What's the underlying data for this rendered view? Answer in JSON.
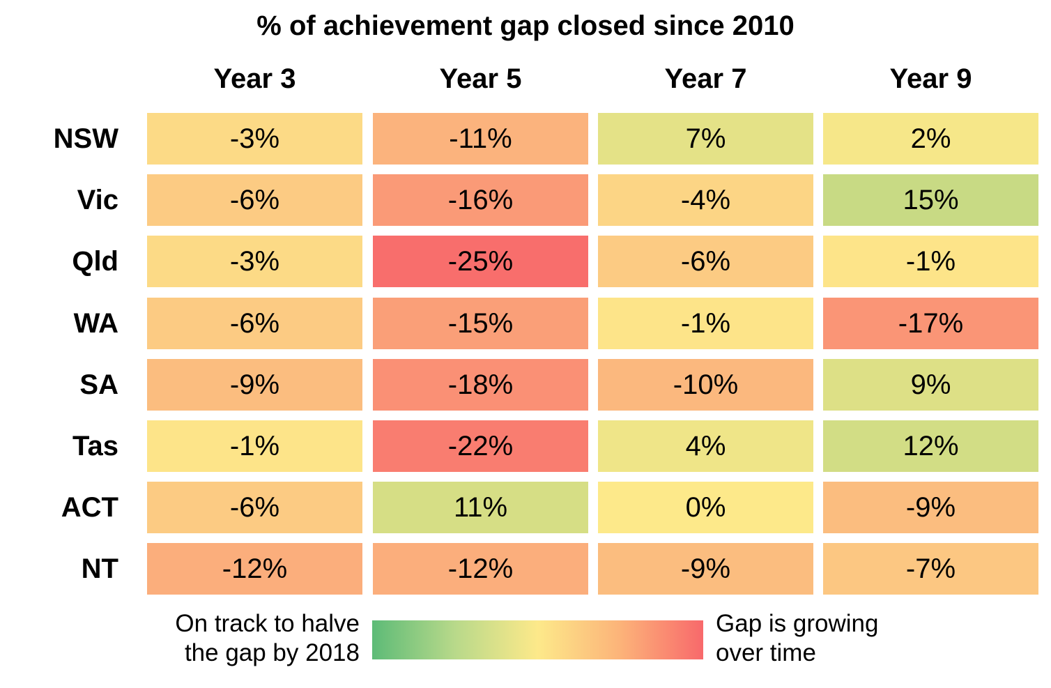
{
  "chart_data": {
    "type": "heatmap",
    "title": "% of achievement gap closed since 2010",
    "columns": [
      "Year 3",
      "Year 5",
      "Year 7",
      "Year 9"
    ],
    "rows": [
      "NSW",
      "Vic",
      "Qld",
      "WA",
      "SA",
      "Tas",
      "ACT",
      "NT"
    ],
    "values": [
      [
        -3,
        -11,
        7,
        2
      ],
      [
        -6,
        -16,
        -4,
        15
      ],
      [
        -3,
        -25,
        -6,
        -1
      ],
      [
        -6,
        -15,
        -1,
        -17
      ],
      [
        -9,
        -18,
        -10,
        9
      ],
      [
        -1,
        -22,
        4,
        12
      ],
      [
        -6,
        11,
        0,
        -9
      ],
      [
        -12,
        -12,
        -9,
        -7
      ]
    ],
    "labels": [
      [
        "-3%",
        "-11%",
        "7%",
        "2%"
      ],
      [
        "-6%",
        "-16%",
        "-4%",
        "15%"
      ],
      [
        "-3%",
        "-25%",
        "-6%",
        "-1%"
      ],
      [
        "-6%",
        "-15%",
        "-1%",
        "-17%"
      ],
      [
        "-9%",
        "-18%",
        "-10%",
        "9%"
      ],
      [
        "-1%",
        "-22%",
        "4%",
        "12%"
      ],
      [
        "-6%",
        "11%",
        "0%",
        "-9%"
      ],
      [
        "-12%",
        "-12%",
        "-9%",
        "-7%"
      ]
    ],
    "color_scale": {
      "green": "#5dbb77",
      "yellow": "#fde98a",
      "red": "#f8696b"
    },
    "legend": {
      "left_label_line1": "On track to halve",
      "left_label_line2": "the gap by 2018",
      "right_label_line1": "Gap is growing",
      "right_label_line2": "over time"
    }
  }
}
